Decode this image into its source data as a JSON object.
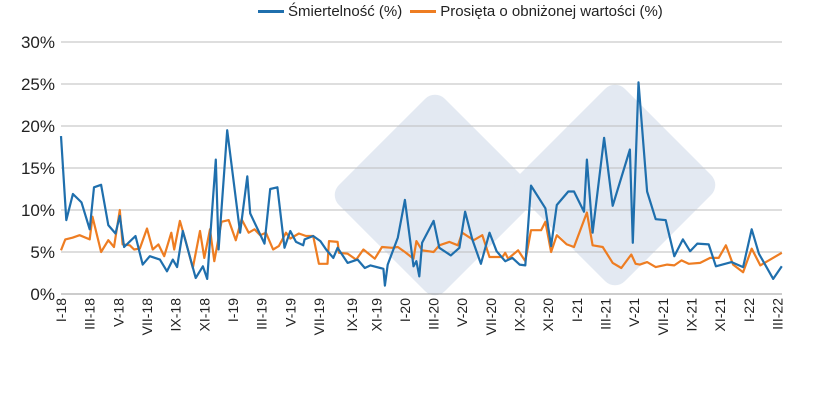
{
  "chart_data": {
    "type": "line",
    "title": "",
    "xlabel": "",
    "ylabel": "",
    "ylim": [
      0,
      30
    ],
    "y_ticks": [
      "0%",
      "5%",
      "10%",
      "15%",
      "20%",
      "25%",
      "30%"
    ],
    "y_tick_values": [
      0,
      5,
      10,
      15,
      20,
      25,
      30
    ],
    "x_range": [
      "2018-01-01",
      "2022-03-10"
    ],
    "x_ticks": [
      {
        "label": "I-18",
        "date": "2018-01-01"
      },
      {
        "label": "III-18",
        "date": "2018-03-01"
      },
      {
        "label": "V-18",
        "date": "2018-05-01"
      },
      {
        "label": "VII-18",
        "date": "2018-07-01"
      },
      {
        "label": "IX-18",
        "date": "2018-09-01"
      },
      {
        "label": "XI-18",
        "date": "2018-11-01"
      },
      {
        "label": "I-19",
        "date": "2019-01-01"
      },
      {
        "label": "III-19",
        "date": "2019-03-01"
      },
      {
        "label": "V-19",
        "date": "2019-05-01"
      },
      {
        "label": "VII-19",
        "date": "2019-07-01"
      },
      {
        "label": "IX-19",
        "date": "2019-09-10"
      },
      {
        "label": "XI-19",
        "date": "2019-11-01"
      },
      {
        "label": "I-20",
        "date": "2020-01-01"
      },
      {
        "label": "III-20",
        "date": "2020-03-01"
      },
      {
        "label": "V-20",
        "date": "2020-05-01"
      },
      {
        "label": "VII-20",
        "date": "2020-07-01"
      },
      {
        "label": "IX-20",
        "date": "2020-09-01"
      },
      {
        "label": "XI-20",
        "date": "2020-11-01"
      },
      {
        "label": "I-21",
        "date": "2021-01-01"
      },
      {
        "label": "III-21",
        "date": "2021-03-01"
      },
      {
        "label": "V-21",
        "date": "2021-05-01"
      },
      {
        "label": "VII-21",
        "date": "2021-07-01"
      },
      {
        "label": "IX-21",
        "date": "2021-09-01"
      },
      {
        "label": "XI-21",
        "date": "2021-11-01"
      },
      {
        "label": "I-22",
        "date": "2022-01-01"
      },
      {
        "label": "III-22",
        "date": "2022-03-01"
      }
    ],
    "grid": true,
    "legend_position": "top",
    "series": [
      {
        "name": "Śmiertelność (%)",
        "color": "#1f6fad",
        "points": [
          [
            "2018-01-01",
            18.8
          ],
          [
            "2018-01-12",
            8.8
          ],
          [
            "2018-01-26",
            11.9
          ],
          [
            "2018-02-14",
            10.9
          ],
          [
            "2018-03-01",
            7.7
          ],
          [
            "2018-03-10",
            12.7
          ],
          [
            "2018-03-25",
            13.0
          ],
          [
            "2018-04-10",
            8.2
          ],
          [
            "2018-04-25",
            7.2
          ],
          [
            "2018-05-04",
            9.3
          ],
          [
            "2018-05-13",
            5.6
          ],
          [
            "2018-06-07",
            6.9
          ],
          [
            "2018-06-22",
            3.5
          ],
          [
            "2018-07-07",
            4.5
          ],
          [
            "2018-07-28",
            4.1
          ],
          [
            "2018-08-13",
            2.7
          ],
          [
            "2018-08-25",
            4.1
          ],
          [
            "2018-09-04",
            3.2
          ],
          [
            "2018-09-16",
            7.5
          ],
          [
            "2018-10-13",
            1.9
          ],
          [
            "2018-10-28",
            3.3
          ],
          [
            "2018-11-07",
            1.8
          ],
          [
            "2018-11-25",
            16.0
          ],
          [
            "2018-12-01",
            5.3
          ],
          [
            "2018-12-19",
            19.5
          ],
          [
            "2019-01-16",
            7.3
          ],
          [
            "2019-02-01",
            14.0
          ],
          [
            "2019-02-07",
            9.6
          ],
          [
            "2019-03-07",
            6.0
          ],
          [
            "2019-03-19",
            12.5
          ],
          [
            "2019-04-04",
            12.7
          ],
          [
            "2019-04-19",
            5.5
          ],
          [
            "2019-05-01",
            7.5
          ],
          [
            "2019-05-13",
            6.2
          ],
          [
            "2019-05-28",
            5.8
          ],
          [
            "2019-06-01",
            6.5
          ],
          [
            "2019-06-19",
            6.9
          ],
          [
            "2019-07-04",
            6.3
          ],
          [
            "2019-07-16",
            5.3
          ],
          [
            "2019-08-01",
            4.3
          ],
          [
            "2019-08-10",
            5.5
          ],
          [
            "2019-09-01",
            3.7
          ],
          [
            "2019-09-22",
            4.1
          ],
          [
            "2019-10-07",
            3.1
          ],
          [
            "2019-10-19",
            3.4
          ],
          [
            "2019-11-16",
            3.0
          ],
          [
            "2019-11-19",
            1.0
          ],
          [
            "2019-11-25",
            3.5
          ],
          [
            "2019-12-16",
            6.7
          ],
          [
            "2020-01-01",
            11.2
          ],
          [
            "2020-01-19",
            3.3
          ],
          [
            "2020-01-25",
            3.9
          ],
          [
            "2020-02-01",
            2.1
          ],
          [
            "2020-02-07",
            6.1
          ],
          [
            "2020-03-01",
            8.7
          ],
          [
            "2020-03-13",
            5.5
          ],
          [
            "2020-04-07",
            4.6
          ],
          [
            "2020-04-25",
            5.5
          ],
          [
            "2020-05-07",
            9.8
          ],
          [
            "2020-05-22",
            6.5
          ],
          [
            "2020-06-10",
            3.6
          ],
          [
            "2020-06-28",
            7.3
          ],
          [
            "2020-07-13",
            5.1
          ],
          [
            "2020-08-01",
            3.9
          ],
          [
            "2020-08-16",
            4.3
          ],
          [
            "2020-09-01",
            3.5
          ],
          [
            "2020-09-13",
            3.4
          ],
          [
            "2020-09-25",
            12.9
          ],
          [
            "2020-10-25",
            10.2
          ],
          [
            "2020-11-07",
            5.7
          ],
          [
            "2020-11-19",
            10.6
          ],
          [
            "2020-12-13",
            12.2
          ],
          [
            "2020-12-25",
            12.2
          ],
          [
            "2021-01-16",
            9.8
          ],
          [
            "2021-01-22",
            16.0
          ],
          [
            "2021-02-04",
            7.3
          ],
          [
            "2021-02-28",
            18.6
          ],
          [
            "2021-03-16",
            10.5
          ],
          [
            "2021-04-22",
            17.2
          ],
          [
            "2021-04-28",
            6.1
          ],
          [
            "2021-05-10",
            25.2
          ],
          [
            "2021-05-28",
            12.2
          ],
          [
            "2021-06-16",
            8.9
          ],
          [
            "2021-07-07",
            8.8
          ],
          [
            "2021-07-25",
            4.5
          ],
          [
            "2021-08-13",
            6.5
          ],
          [
            "2021-08-28",
            5.1
          ],
          [
            "2021-09-13",
            6.0
          ],
          [
            "2021-10-07",
            5.9
          ],
          [
            "2021-10-22",
            3.3
          ],
          [
            "2021-11-25",
            3.8
          ],
          [
            "2021-12-19",
            3.2
          ],
          [
            "2022-01-07",
            7.7
          ],
          [
            "2022-01-22",
            4.8
          ],
          [
            "2022-02-22",
            1.8
          ],
          [
            "2022-03-10",
            3.3
          ]
        ]
      },
      {
        "name": "Prosięta o obniżonej wartości (%)",
        "color": "#ee7d22",
        "points": [
          [
            "2018-01-01",
            5.2
          ],
          [
            "2018-01-10",
            6.5
          ],
          [
            "2018-01-25",
            6.7
          ],
          [
            "2018-02-10",
            7.0
          ],
          [
            "2018-03-01",
            6.5
          ],
          [
            "2018-03-07",
            9.2
          ],
          [
            "2018-03-25",
            5.0
          ],
          [
            "2018-04-10",
            6.4
          ],
          [
            "2018-04-22",
            5.6
          ],
          [
            "2018-05-04",
            10.0
          ],
          [
            "2018-05-10",
            5.9
          ],
          [
            "2018-05-25",
            5.8
          ],
          [
            "2018-06-04",
            5.3
          ],
          [
            "2018-06-16",
            5.4
          ],
          [
            "2018-07-01",
            7.8
          ],
          [
            "2018-07-13",
            5.3
          ],
          [
            "2018-07-25",
            5.9
          ],
          [
            "2018-08-07",
            4.5
          ],
          [
            "2018-08-22",
            7.3
          ],
          [
            "2018-08-28",
            5.3
          ],
          [
            "2018-09-10",
            8.7
          ],
          [
            "2018-09-22",
            6.3
          ],
          [
            "2018-10-07",
            3.1
          ],
          [
            "2018-10-22",
            7.5
          ],
          [
            "2018-11-01",
            4.3
          ],
          [
            "2018-11-13",
            7.7
          ],
          [
            "2018-11-22",
            3.9
          ],
          [
            "2018-12-07",
            8.6
          ],
          [
            "2018-12-22",
            8.8
          ],
          [
            "2019-01-07",
            6.4
          ],
          [
            "2019-01-19",
            8.9
          ],
          [
            "2019-02-04",
            7.3
          ],
          [
            "2019-02-16",
            7.7
          ],
          [
            "2019-02-28",
            7.0
          ],
          [
            "2019-03-10",
            7.3
          ],
          [
            "2019-03-25",
            5.3
          ],
          [
            "2019-04-07",
            5.7
          ],
          [
            "2019-04-22",
            7.3
          ],
          [
            "2019-05-01",
            6.6
          ],
          [
            "2019-05-19",
            7.2
          ],
          [
            "2019-06-04",
            6.9
          ],
          [
            "2019-06-19",
            6.9
          ],
          [
            "2019-07-01",
            3.6
          ],
          [
            "2019-07-19",
            3.6
          ],
          [
            "2019-07-22",
            6.3
          ],
          [
            "2019-08-10",
            6.2
          ],
          [
            "2019-08-13",
            4.9
          ],
          [
            "2019-09-01",
            4.8
          ],
          [
            "2019-09-19",
            4.1
          ],
          [
            "2019-10-04",
            5.3
          ],
          [
            "2019-10-28",
            4.2
          ],
          [
            "2019-11-13",
            5.6
          ],
          [
            "2019-12-04",
            5.5
          ],
          [
            "2019-12-16",
            5.6
          ],
          [
            "2020-01-01",
            5.0
          ],
          [
            "2020-01-19",
            4.2
          ],
          [
            "2020-01-25",
            6.3
          ],
          [
            "2020-02-07",
            5.2
          ],
          [
            "2020-03-01",
            5.0
          ],
          [
            "2020-03-13",
            5.8
          ],
          [
            "2020-04-04",
            6.2
          ],
          [
            "2020-04-22",
            5.8
          ],
          [
            "2020-05-01",
            7.3
          ],
          [
            "2020-05-25",
            6.4
          ],
          [
            "2020-06-13",
            7.0
          ],
          [
            "2020-06-28",
            4.4
          ],
          [
            "2020-07-25",
            4.4
          ],
          [
            "2020-08-01",
            4.9
          ],
          [
            "2020-08-07",
            4.2
          ],
          [
            "2020-08-28",
            5.2
          ],
          [
            "2020-09-13",
            3.9
          ],
          [
            "2020-09-25",
            7.6
          ],
          [
            "2020-10-16",
            7.6
          ],
          [
            "2020-10-25",
            8.6
          ],
          [
            "2020-11-07",
            5.0
          ],
          [
            "2020-11-19",
            7.0
          ],
          [
            "2020-12-10",
            5.9
          ],
          [
            "2020-12-25",
            5.6
          ],
          [
            "2021-01-22",
            9.7
          ],
          [
            "2021-02-04",
            5.8
          ],
          [
            "2021-02-25",
            5.6
          ],
          [
            "2021-03-16",
            3.7
          ],
          [
            "2021-04-04",
            3.1
          ],
          [
            "2021-04-25",
            4.7
          ],
          [
            "2021-05-04",
            3.6
          ],
          [
            "2021-05-13",
            3.5
          ],
          [
            "2021-05-28",
            3.8
          ],
          [
            "2021-06-16",
            3.2
          ],
          [
            "2021-07-10",
            3.5
          ],
          [
            "2021-07-25",
            3.4
          ],
          [
            "2021-08-10",
            4.0
          ],
          [
            "2021-08-25",
            3.6
          ],
          [
            "2021-09-19",
            3.7
          ],
          [
            "2021-10-10",
            4.3
          ],
          [
            "2021-10-28",
            4.3
          ],
          [
            "2021-11-13",
            5.8
          ],
          [
            "2021-11-28",
            3.5
          ],
          [
            "2021-12-19",
            2.6
          ],
          [
            "2022-01-07",
            5.4
          ],
          [
            "2022-01-25",
            3.4
          ],
          [
            "2022-03-10",
            4.9
          ]
        ]
      }
    ]
  }
}
